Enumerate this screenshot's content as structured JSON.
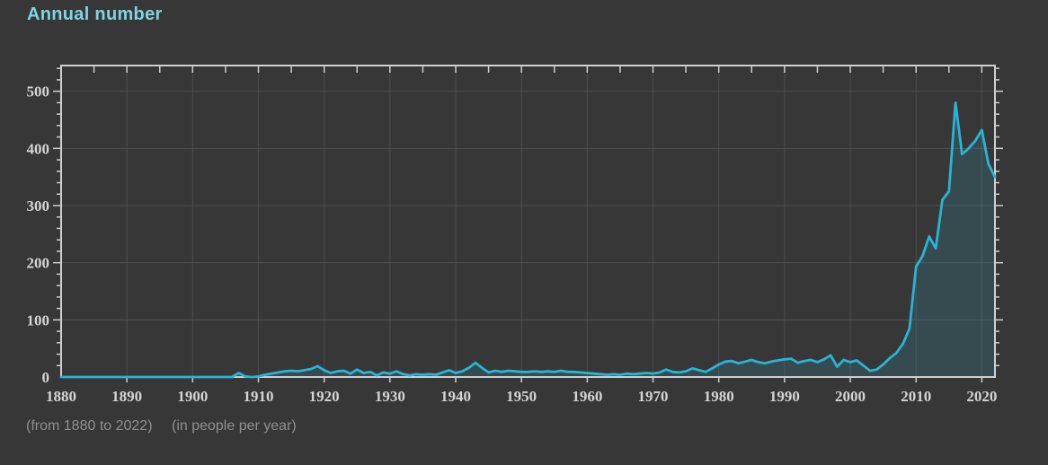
{
  "page": {
    "title": "Annual number",
    "caption": {
      "range": "(from 1880 to 2022)",
      "unit": "(in people per year)"
    }
  },
  "colors": {
    "background": "#373737",
    "title": "#7fd4e0",
    "line": "#29b4d6",
    "area_fill": "rgba(41,180,214,0.16)",
    "axis": "#cfcfcf",
    "grid": "#4d4d4d",
    "tick_label": "#d4d4d4",
    "caption": "#8f8f8f"
  },
  "chart_data": {
    "type": "area",
    "title": "Annual number",
    "xlabel": "",
    "ylabel": "",
    "x_start": 1880,
    "x_end": 2022,
    "x_ticks": [
      1880,
      1890,
      1900,
      1910,
      1920,
      1930,
      1940,
      1950,
      1960,
      1970,
      1980,
      1990,
      2000,
      2010,
      2020
    ],
    "x_minor_step": 5,
    "y_ticks": [
      0,
      100,
      200,
      300,
      400,
      500
    ],
    "y_minor_step": 20,
    "ylim": [
      0,
      545
    ],
    "grid": true,
    "legend_position": "none",
    "series_name": "people per year",
    "values": [
      0,
      0,
      0,
      0,
      0,
      0,
      0,
      0,
      0,
      0,
      0,
      0,
      0,
      0,
      0,
      0,
      0,
      0,
      0,
      0,
      0,
      0,
      0,
      0,
      0,
      0,
      0,
      7,
      1,
      0,
      1,
      4,
      6,
      8,
      10,
      11,
      10,
      12,
      14,
      19,
      12,
      7,
      10,
      11,
      6,
      13,
      7,
      9,
      3,
      8,
      6,
      10,
      5,
      3,
      5,
      4,
      5,
      4,
      8,
      12,
      7,
      10,
      16,
      25,
      16,
      8,
      11,
      9,
      11,
      10,
      9,
      9,
      10,
      9,
      10,
      9,
      11,
      9,
      9,
      8,
      7,
      6,
      5,
      4,
      5,
      4,
      6,
      5,
      6,
      7,
      6,
      8,
      13,
      9,
      8,
      10,
      15,
      12,
      9,
      15,
      22,
      27,
      28,
      24,
      27,
      30,
      26,
      24,
      27,
      29,
      31,
      32,
      25,
      28,
      30,
      26,
      31,
      38,
      18,
      30,
      26,
      29,
      20,
      11,
      13,
      22,
      33,
      42,
      58,
      85,
      193,
      212,
      246,
      225,
      310,
      325,
      480,
      390,
      400,
      413,
      432,
      373,
      350
    ]
  }
}
